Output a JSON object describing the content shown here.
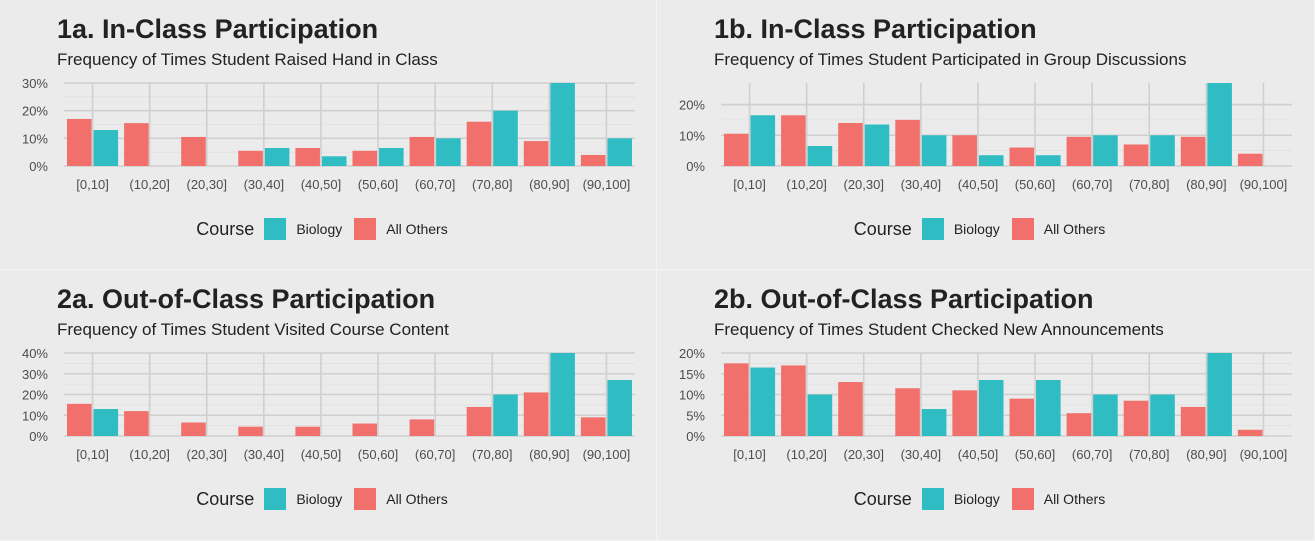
{
  "colors": {
    "biology": "#2fbcc2",
    "all_others": "#f1706c"
  },
  "legend": {
    "title": "Course",
    "biology": "Biology",
    "all_others": "All Others"
  },
  "chart_data": [
    {
      "id": "1a",
      "type": "bar",
      "title": "1a. In-Class Participation",
      "subtitle": "Frequency of Times Student Raised Hand in Class",
      "categories": [
        "[0,10]",
        "(10,20]",
        "(20,30]",
        "(30,40]",
        "(40,50]",
        "(50,60]",
        "(60,70]",
        "(70,80]",
        "(80,90]",
        "(90,100]"
      ],
      "series": [
        {
          "name": "All Others",
          "values": [
            17,
            15.5,
            10.5,
            5.5,
            6.5,
            5.5,
            10.5,
            16,
            9,
            4
          ]
        },
        {
          "name": "Biology",
          "values": [
            13,
            0,
            0,
            6.5,
            3.5,
            6.5,
            10,
            20,
            30,
            10
          ]
        }
      ],
      "ylim": [
        0,
        30
      ],
      "yticks": [
        0,
        10,
        20,
        30
      ],
      "ytick_labels": [
        "0%",
        "10%",
        "20%",
        "30%"
      ]
    },
    {
      "id": "1b",
      "type": "bar",
      "title": "1b. In-Class Participation",
      "subtitle": "Frequency of Times Student Participated in Group Discussions",
      "categories": [
        "[0,10]",
        "(10,20]",
        "(20,30]",
        "(30,40]",
        "(40,50]",
        "(50,60]",
        "(60,70]",
        "(70,80]",
        "(80,90]",
        "(90,100]"
      ],
      "series": [
        {
          "name": "All Others",
          "values": [
            10.5,
            16.5,
            14,
            15,
            10,
            6,
            9.5,
            7,
            9.5,
            4
          ]
        },
        {
          "name": "Biology",
          "values": [
            16.5,
            6.5,
            13.5,
            10,
            3.5,
            3.5,
            10,
            10,
            27,
            0
          ]
        }
      ],
      "ylim": [
        0,
        27
      ],
      "yticks": [
        0,
        10,
        20
      ],
      "ytick_labels": [
        "0%",
        "10%",
        "20%"
      ]
    },
    {
      "id": "2a",
      "type": "bar",
      "title": "2a. Out-of-Class Participation",
      "subtitle": "Frequency of Times Student Visited Course Content",
      "categories": [
        "[0,10]",
        "(10,20]",
        "(20,30]",
        "(30,40]",
        "(40,50]",
        "(50,60]",
        "(60,70]",
        "(70,80]",
        "(80,90]",
        "(90,100]"
      ],
      "series": [
        {
          "name": "All Others",
          "values": [
            15.5,
            12,
            6.5,
            4.5,
            4.5,
            6,
            8,
            14,
            21,
            9
          ]
        },
        {
          "name": "Biology",
          "values": [
            13,
            0,
            0,
            0,
            0,
            0,
            0,
            20,
            40,
            27
          ]
        }
      ],
      "ylim": [
        0,
        40
      ],
      "yticks": [
        0,
        10,
        20,
        30,
        40
      ],
      "ytick_labels": [
        "0%",
        "10%",
        "20%",
        "30%",
        "40%"
      ]
    },
    {
      "id": "2b",
      "type": "bar",
      "title": "2b. Out-of-Class Participation",
      "subtitle": "Frequency of Times Student Checked New Announcements",
      "categories": [
        "[0,10]",
        "(10,20]",
        "(20,30]",
        "(30,40]",
        "(40,50]",
        "(50,60]",
        "(60,70]",
        "(70,80]",
        "(80,90]",
        "(90,100]"
      ],
      "series": [
        {
          "name": "All Others",
          "values": [
            17.5,
            17,
            13,
            11.5,
            11,
            9,
            5.5,
            8.5,
            7,
            1.5
          ]
        },
        {
          "name": "Biology",
          "values": [
            16.5,
            10,
            0,
            6.5,
            13.5,
            13.5,
            10,
            10,
            20,
            0
          ]
        }
      ],
      "ylim": [
        0,
        20
      ],
      "yticks": [
        0,
        5,
        10,
        15,
        20
      ],
      "ytick_labels": [
        "0%",
        "5%",
        "10%",
        "15%",
        "20%"
      ]
    }
  ]
}
